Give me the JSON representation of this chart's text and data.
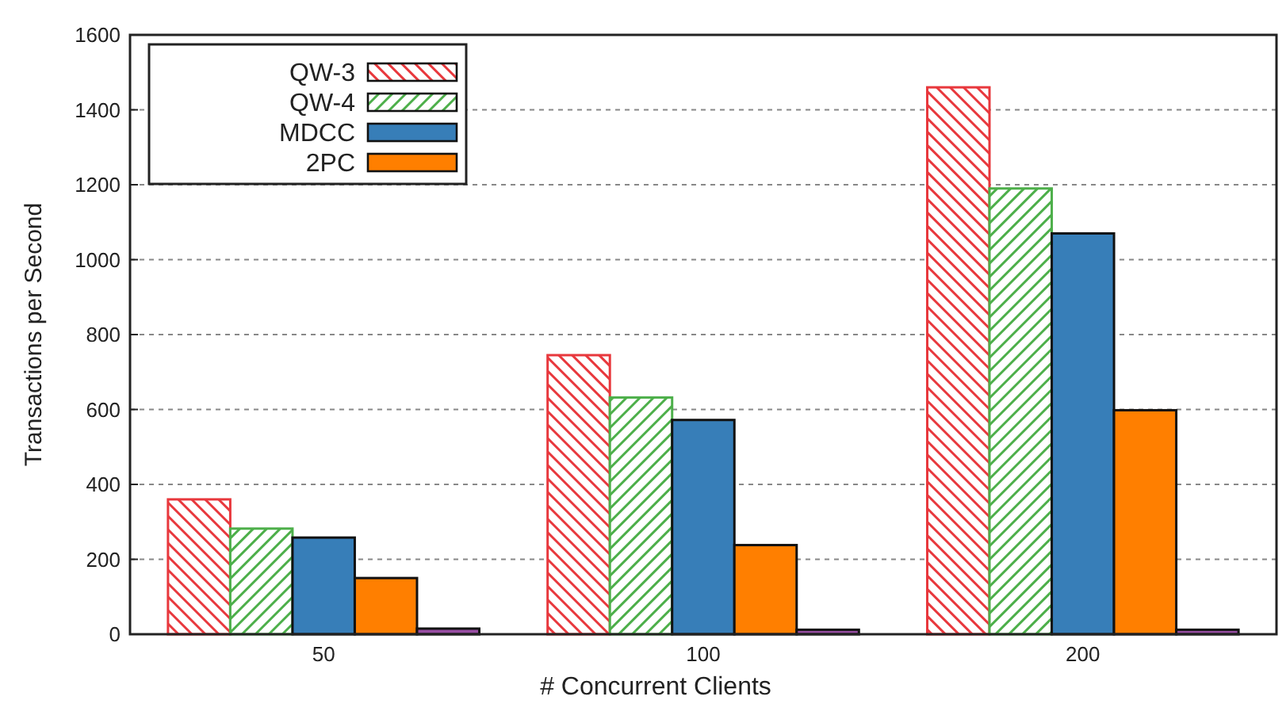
{
  "chart_data": {
    "type": "bar",
    "xlabel": "# Concurrent Clients",
    "ylabel": "Transactions per Second",
    "categories": [
      "50",
      "100",
      "200"
    ],
    "series": [
      {
        "name": "QW-3",
        "color": "#e8383d",
        "values": [
          360,
          745,
          1460
        ]
      },
      {
        "name": "QW-4",
        "color": "#4daf4a",
        "values": [
          282,
          632,
          1190
        ]
      },
      {
        "name": "MDCC",
        "color": "#377eb8",
        "values": [
          258,
          572,
          1070
        ]
      },
      {
        "name": "2PC",
        "color": "#ff7f00",
        "values": [
          150,
          238,
          598
        ]
      },
      {
        "color": "#984ea3",
        "values": [
          15,
          12,
          12
        ]
      }
    ],
    "ylim": [
      0,
      1600
    ],
    "yticks": [
      0,
      200,
      400,
      600,
      800,
      1000,
      1200,
      1400,
      1600
    ],
    "grid": "y",
    "legend": "top left"
  }
}
